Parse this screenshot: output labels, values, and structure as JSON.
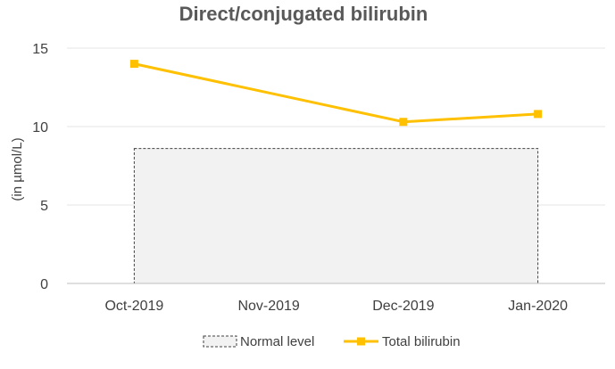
{
  "chart_data": {
    "type": "line",
    "title": "Direct/conjugated bilirubin",
    "xlabel": "",
    "ylabel": "(in µmol/L)",
    "categories": [
      "Oct-2019",
      "Nov-2019",
      "Dec-2019",
      "Jan-2020"
    ],
    "ylim": [
      0,
      15
    ],
    "yticks": [
      0,
      5,
      10,
      15
    ],
    "grid": true,
    "legend_position": "bottom",
    "normal_range": {
      "name": "Normal level",
      "from": 0,
      "to": 8.6,
      "start_category": "Oct-2019",
      "end_category": "Jan-2020",
      "fill_color": "#f2f2f2",
      "border_color": "#404040"
    },
    "series": [
      {
        "name": "Total bilirubin",
        "x": [
          "Oct-2019",
          "Dec-2019",
          "Jan-2020"
        ],
        "values": [
          14,
          10.3,
          10.8
        ],
        "color": "#ffc000",
        "marker": "square"
      }
    ]
  }
}
